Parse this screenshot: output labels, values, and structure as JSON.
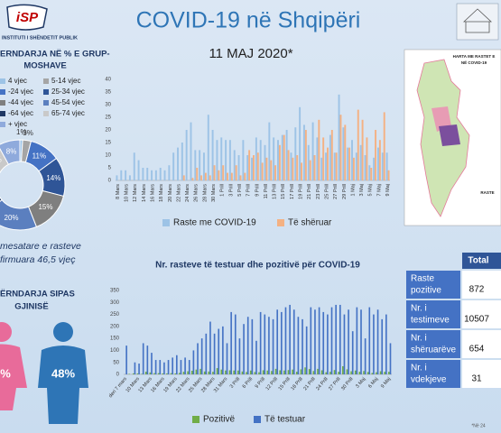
{
  "header": {
    "logo": "iSP",
    "institute": "INSTITUTI I SHËNDETIT PUBLIK",
    "title": "COVID-19 në Shqipëri",
    "date": "11 MAJ 2020*"
  },
  "age_section": {
    "average_lines": [
      "mesatare e rasteve",
      "firmuara 46,5 vjeç"
    ]
  },
  "gender_section": {
    "title_lines": [
      "ËRNDARJA SIPAS",
      "GJINISË"
    ],
    "female_label": "%",
    "male_label": "48%"
  },
  "map": {
    "title_lines": [
      "HARTA ME RASTET E",
      "NË COVID-19"
    ],
    "legend_label": "RASTE"
  },
  "table": {
    "header": "Total",
    "rows": [
      {
        "label_lines": [
          "Raste",
          "pozitive"
        ],
        "value": 872
      },
      {
        "label_lines": [
          "Nr. i",
          "testimeve"
        ],
        "value": 10507
      },
      {
        "label_lines": [
          "Nr. i",
          "shëruarëve"
        ],
        "value": 654
      },
      {
        "label_lines": [
          "Nr. i",
          "vdekjeve"
        ],
        "value": 31
      }
    ]
  },
  "footnote": "*Në 24",
  "chart_data": [
    {
      "type": "pie",
      "title": [
        "ERNDARJA NË % E GRUP-",
        "MOSHAVE"
      ],
      "categories": [
        "4 vjec",
        "5-14 vjec",
        "-24 vjec",
        "25-34 vjec",
        "-44 vjec",
        "45-54 vjec",
        "-64 vjec",
        "65-74 vjec",
        "+ vjec"
      ],
      "values": [
        1,
        3,
        11,
        14,
        15,
        20,
        20,
        8,
        8
      ],
      "value_labels": [
        "1%",
        "3%",
        "11%",
        "14%",
        "15%",
        "20%",
        null,
        "8%",
        "8%"
      ],
      "colors": [
        "#9dc3e6",
        "#a5a5a5",
        "#4472c4",
        "#2f5597",
        "#7f7f7f",
        "#5b7fbf",
        "#1f3864",
        "#c9c9c9",
        "#8faadc"
      ]
    },
    {
      "type": "bar",
      "categories": [
        "8 Mars",
        null,
        "10 Mars",
        null,
        "12 Mars",
        null,
        "14 Mars",
        null,
        "16 Mars",
        null,
        "18 Mars",
        null,
        "20 Mars",
        null,
        "22 Mars",
        null,
        "24 Mars",
        null,
        "26 Mars",
        null,
        "28 Mars",
        null,
        "30 Mars",
        null,
        "1 Prill",
        null,
        "3 Prill",
        null,
        "5 Prill",
        null,
        "7 Prill",
        null,
        "9 Prill",
        null,
        "11 Prill",
        null,
        "13 Prill",
        null,
        "15 Prill",
        null,
        "17 Prill",
        null,
        "19 Prill",
        null,
        "21 Prill",
        null,
        "23 Prill",
        null,
        "25 Prill",
        null,
        "27 Prill",
        null,
        "29 Prill",
        null,
        "1 Maj",
        null,
        "3 Maj",
        null,
        "5 Maj",
        null,
        "7 Maj",
        null,
        "9 Maj"
      ],
      "series": [
        {
          "name": "Raste me COVID-19",
          "color": "#9dc3e6",
          "values": [
            2,
            4,
            4,
            2,
            11,
            8,
            5,
            5,
            4,
            4,
            5,
            4,
            6,
            11,
            13,
            15,
            20,
            23,
            12,
            12,
            11,
            26,
            20,
            16,
            17,
            16,
            16,
            12,
            10,
            16,
            10,
            9,
            17,
            16,
            14,
            23,
            17,
            16,
            18,
            20,
            11,
            21,
            29,
            22,
            14,
            23,
            17,
            9,
            11,
            18,
            11,
            34,
            21,
            13,
            16,
            11,
            14,
            10,
            6,
            9,
            13,
            11,
            11
          ]
        },
        {
          "name": "Të shëruar",
          "color": "#f4b183",
          "values": [
            0,
            0,
            0,
            0,
            0,
            0,
            0,
            0,
            0,
            0,
            0,
            0,
            0,
            0,
            0,
            2,
            0,
            1,
            5,
            2,
            3,
            2,
            6,
            4,
            6,
            3,
            3,
            6,
            2,
            3,
            12,
            10,
            11,
            7,
            9,
            8,
            6,
            14,
            18,
            12,
            9,
            10,
            7,
            20,
            8,
            10,
            24,
            17,
            13,
            20,
            11,
            26,
            22,
            13,
            9,
            28,
            24,
            17,
            5,
            20,
            16,
            27,
            4
          ]
        }
      ],
      "ylim": [
        0,
        40
      ],
      "yticks": [
        0,
        5,
        10,
        15,
        20,
        25,
        30,
        35,
        40
      ],
      "grid": false
    },
    {
      "type": "bar",
      "title": "Nr. rasteve të testuar dhe pozitivë për COVID-19",
      "categories": [
        "deri 7 mars",
        null,
        null,
        "10 Mars",
        null,
        null,
        "13 Mars",
        null,
        null,
        "16 Mars",
        null,
        null,
        "19 Mars",
        null,
        null,
        "22 Mars",
        null,
        null,
        "25 Mars",
        null,
        null,
        "28 Mars",
        null,
        null,
        "31 Mars",
        null,
        null,
        "3 Prill",
        null,
        null,
        "6 Prill",
        null,
        null,
        "9 Prill",
        null,
        null,
        "12 Prill",
        null,
        null,
        "15 Prill",
        null,
        null,
        "18 Prill",
        null,
        null,
        "21 Prill",
        null,
        null,
        "24 Prill",
        null,
        null,
        "27 Prill",
        null,
        null,
        "30 Prill",
        null,
        null,
        "3 Maj",
        null,
        null,
        "6 Maj",
        null,
        null,
        "9 Maj"
      ],
      "series": [
        {
          "name": "Pozitivë",
          "color": "#70ad47",
          "values": [
            0,
            2,
            4,
            4,
            2,
            11,
            8,
            5,
            5,
            4,
            4,
            5,
            4,
            6,
            11,
            13,
            15,
            20,
            23,
            12,
            12,
            11,
            26,
            20,
            16,
            17,
            16,
            16,
            12,
            10,
            16,
            10,
            9,
            17,
            16,
            14,
            23,
            17,
            16,
            18,
            20,
            11,
            21,
            29,
            22,
            14,
            23,
            17,
            9,
            11,
            18,
            11,
            34,
            21,
            13,
            16,
            11,
            14,
            10,
            6,
            9,
            13,
            11,
            11
          ]
        },
        {
          "name": "Të testuar",
          "color": "#4472c4",
          "values": [
            120,
            0,
            50,
            45,
            130,
            120,
            90,
            60,
            60,
            50,
            60,
            70,
            80,
            60,
            70,
            60,
            100,
            130,
            150,
            170,
            220,
            170,
            190,
            200,
            130,
            260,
            250,
            150,
            210,
            240,
            230,
            140,
            260,
            250,
            240,
            230,
            270,
            260,
            280,
            290,
            270,
            240,
            230,
            200,
            280,
            270,
            280,
            260,
            250,
            280,
            290,
            290,
            250,
            270,
            180,
            280,
            270,
            150,
            280,
            250,
            270,
            230,
            250,
            130
          ]
        }
      ],
      "ylim": [
        0,
        350
      ],
      "yticks": [
        0,
        50,
        100,
        150,
        200,
        250,
        300,
        350
      ],
      "grid": false
    }
  ]
}
